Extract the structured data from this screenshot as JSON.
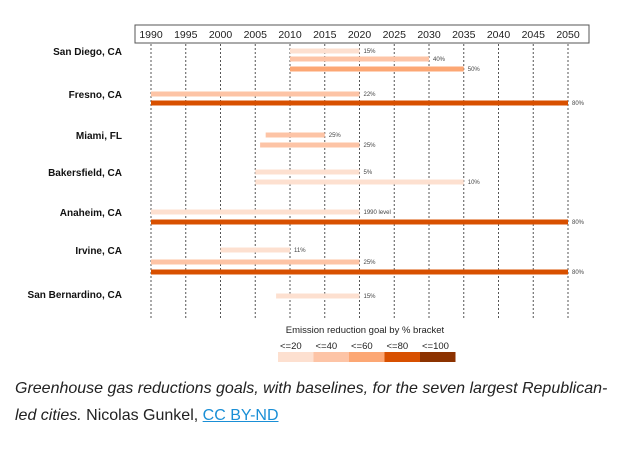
{
  "chart_data": {
    "type": "bar",
    "subtype": "horizontal-range",
    "xlim": [
      1990,
      2050
    ],
    "x_ticks": [
      "1990",
      "1995",
      "2000",
      "2005",
      "2010",
      "2015",
      "2020",
      "2025",
      "2030",
      "2035",
      "2040",
      "2045",
      "2050"
    ],
    "grid": "vertical-dashed",
    "cities": [
      {
        "name": "San Diego, CA",
        "bars": [
          {
            "start": 2010,
            "end": 2020,
            "label": "15%",
            "bracket": 0
          },
          {
            "start": 2010,
            "end": 2030,
            "label": "40%",
            "bracket": 1
          },
          {
            "start": 2010,
            "end": 2035,
            "label": "50%",
            "bracket": 2
          }
        ]
      },
      {
        "name": "Fresno, CA",
        "bars": [
          {
            "start": 1990,
            "end": 2020,
            "label": "22%",
            "bracket": 1
          },
          {
            "start": 1990,
            "end": 2050,
            "label": "80%",
            "bracket": 3
          }
        ]
      },
      {
        "name": "Miami, FL",
        "bars": [
          {
            "start": 2006.5,
            "end": 2015,
            "label": "25%",
            "bracket": 1
          },
          {
            "start": 2005.7,
            "end": 2020,
            "label": "25%",
            "bracket": 1
          }
        ]
      },
      {
        "name": "Bakersfield, CA",
        "bars": [
          {
            "start": 2005,
            "end": 2020,
            "label": "5%",
            "bracket": 0
          },
          {
            "start": 2005,
            "end": 2035,
            "label": "10%",
            "bracket": 0
          }
        ]
      },
      {
        "name": "Anaheim, CA",
        "bars": [
          {
            "start": 1990,
            "end": 2020,
            "label": "1990 level",
            "bracket": 0
          },
          {
            "start": 1990,
            "end": 2050,
            "label": "80%",
            "bracket": 3
          }
        ]
      },
      {
        "name": "Irvine, CA",
        "bars": [
          {
            "start": 2000,
            "end": 2010,
            "label": "11%",
            "bracket": 0
          },
          {
            "start": 1990,
            "end": 2020,
            "label": "25%",
            "bracket": 1
          },
          {
            "start": 1990,
            "end": 2050,
            "label": "80%",
            "bracket": 3
          }
        ]
      },
      {
        "name": "San Bernardino, CA",
        "bars": [
          {
            "start": 2008,
            "end": 2020,
            "label": "15%",
            "bracket": 0
          }
        ]
      }
    ],
    "legend": {
      "title": "Emission reduction goal by % bracket",
      "position": "bottom-center",
      "entries": [
        {
          "label": "<=20",
          "color": "#fde0d0"
        },
        {
          "label": "<=40",
          "color": "#fdc4a6"
        },
        {
          "label": "<=60",
          "color": "#fca774"
        },
        {
          "label": "<=80",
          "color": "#d85000"
        },
        {
          "label": "<=100",
          "color": "#8c3200"
        }
      ]
    }
  },
  "caption": {
    "title_italic": "Greenhouse gas reductions goals, with baselines, for the seven largest Republican-led cities.",
    "author": " Nicolas Gunkel, ",
    "license_link": "CC BY-ND",
    "link_color": "#1a8fd6"
  }
}
